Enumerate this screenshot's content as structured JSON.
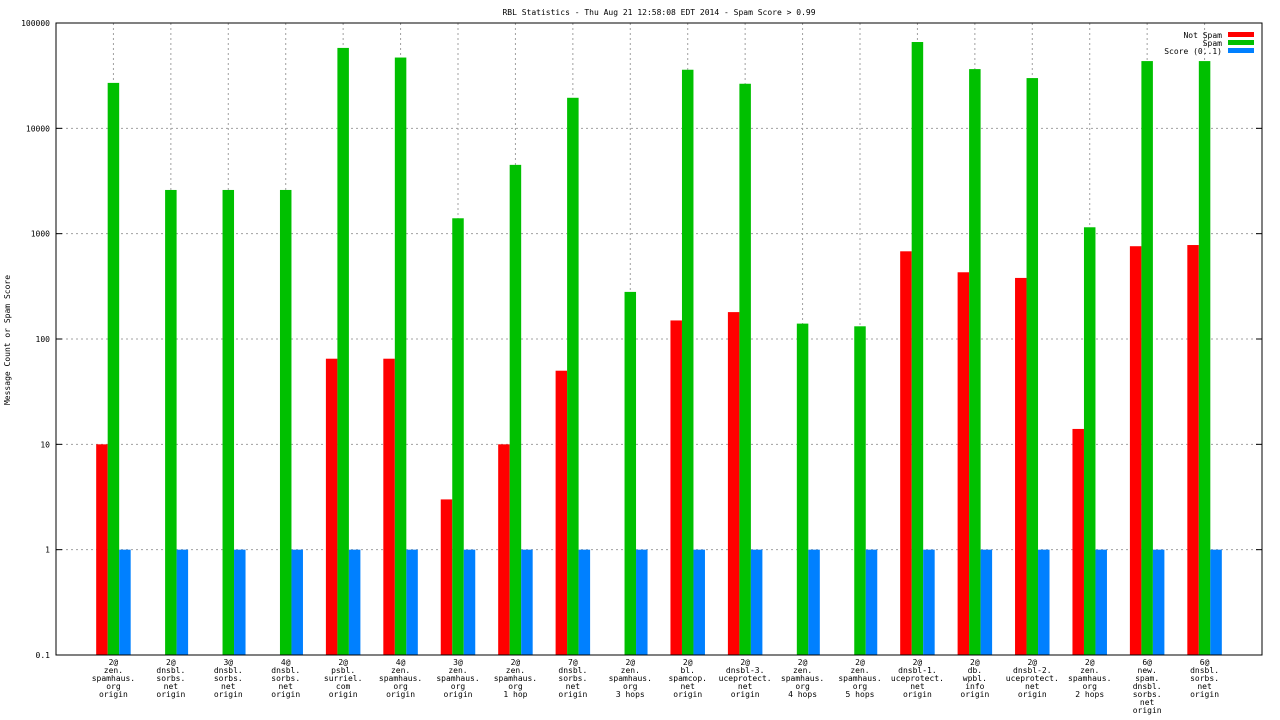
{
  "chart_data": {
    "type": "bar",
    "title": "RBL Statistics - Thu Aug 21 12:58:08 EDT 2014 - Spam Score > 0.99",
    "ylabel": "Message Count or Spam Score",
    "xlabel": "",
    "yscale": "log",
    "ylim": [
      0.1,
      100000
    ],
    "yticks": [
      "0.1",
      "1",
      "10",
      "100",
      "1000",
      "10000",
      "100000"
    ],
    "grid": true,
    "legend_position": "top-right",
    "categories": [
      [
        "2@",
        "zen.",
        "spamhaus.",
        "org",
        "origin"
      ],
      [
        "2@",
        "dnsbl.",
        "sorbs.",
        "net",
        "origin"
      ],
      [
        "3@",
        "dnsbl.",
        "sorbs.",
        "net",
        "origin"
      ],
      [
        "4@",
        "dnsbl.",
        "sorbs.",
        "net",
        "origin"
      ],
      [
        "2@",
        "psbl.",
        "surriel.",
        "com",
        "origin"
      ],
      [
        "4@",
        "zen.",
        "spamhaus.",
        "org",
        "origin"
      ],
      [
        "3@",
        "zen.",
        "spamhaus.",
        "org",
        "origin"
      ],
      [
        "2@",
        "zen.",
        "spamhaus.",
        "org",
        "1 hop"
      ],
      [
        "7@",
        "dnsbl.",
        "sorbs.",
        "net",
        "origin"
      ],
      [
        "2@",
        "zen.",
        "spamhaus.",
        "org",
        "3 hops"
      ],
      [
        "2@",
        "bl.",
        "spamcop.",
        "net",
        "origin"
      ],
      [
        "2@",
        "dnsbl-3.",
        "uceprotect.",
        "net",
        "origin"
      ],
      [
        "2@",
        "zen.",
        "spamhaus.",
        "org",
        "4 hops"
      ],
      [
        "2@",
        "zen.",
        "spamhaus.",
        "org",
        "5 hops"
      ],
      [
        "2@",
        "dnsbl-1.",
        "uceprotect.",
        "net",
        "origin"
      ],
      [
        "2@",
        "db.",
        "wpbl.",
        "info",
        "origin"
      ],
      [
        "2@",
        "dnsbl-2.",
        "uceprotect.",
        "net",
        "origin"
      ],
      [
        "2@",
        "zen.",
        "spamhaus.",
        "org",
        "2 hops"
      ],
      [
        "6@",
        "new.",
        "spam.",
        "dnsbl.",
        "sorbs.",
        "net",
        "origin"
      ],
      [
        "6@",
        "dnsbl.",
        "sorbs.",
        "net",
        "origin"
      ]
    ],
    "series": [
      {
        "name": "Not Spam",
        "color": "#ff0000",
        "values": [
          10,
          null,
          null,
          null,
          65,
          65,
          3,
          10,
          50,
          null,
          150,
          180,
          null,
          null,
          680,
          430,
          380,
          14,
          760,
          780
        ]
      },
      {
        "name": "Spam",
        "color": "#00c000",
        "values": [
          27000,
          2600,
          2600,
          2600,
          58000,
          47000,
          1400,
          4500,
          19500,
          280,
          36000,
          26500,
          140,
          132,
          66000,
          36500,
          30000,
          1150,
          43500,
          43500
        ]
      },
      {
        "name": "Score (0..1)",
        "color": "#0080ff",
        "values": [
          1,
          1,
          1,
          1,
          1,
          1,
          1,
          1,
          1,
          1,
          1,
          1,
          1,
          1,
          1,
          1,
          1,
          1,
          1,
          1
        ]
      }
    ]
  }
}
